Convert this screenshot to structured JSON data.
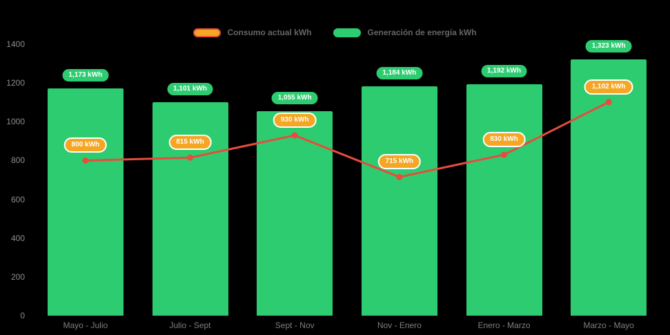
{
  "page": {
    "background": "#000000"
  },
  "legend": {
    "items": [
      {
        "label": "Consumo actual kWh",
        "swatch_fill": "#f5a623",
        "swatch_border": "#e74c3c"
      },
      {
        "label": "Generación de energía kWh",
        "swatch_fill": "#2ecc71",
        "swatch_border": "#2ecc71"
      }
    ]
  },
  "chart_data": {
    "type": "bar",
    "title": "",
    "xlabel": "",
    "ylabel": "",
    "categories": [
      "Mayo - Julio",
      "Julio - Sept",
      "Sept - Nov",
      "Nov - Enero",
      "Enero - Marzo",
      "Marzo - Mayo"
    ],
    "series": [
      {
        "name": "Generación de energía kWh",
        "type": "bar",
        "color": "#2ecc71",
        "badge_color": "#2ecc71",
        "values": [
          1173,
          1101,
          1055,
          1184,
          1192,
          1323
        ],
        "labels": [
          "1,173 kWh",
          "1,101 kWh",
          "1,055 kWh",
          "1,184 kWh",
          "1,192 kWh",
          "1,323 kWh"
        ]
      },
      {
        "name": "Consumo actual kWh",
        "type": "line",
        "color": "#e74c3c",
        "badge_color": "#f5a623",
        "values": [
          800,
          815,
          930,
          715,
          830,
          1102
        ],
        "labels": [
          "800 kWh",
          "815 kWh",
          "930 kWh",
          "715 kWh",
          "830 kWh",
          "1,102 kWh"
        ]
      }
    ],
    "ylim": [
      0,
      1400
    ],
    "yticks": [
      0,
      200,
      400,
      600,
      800,
      1000,
      1200,
      1400
    ],
    "grid": false,
    "legend_position": "top-center"
  }
}
